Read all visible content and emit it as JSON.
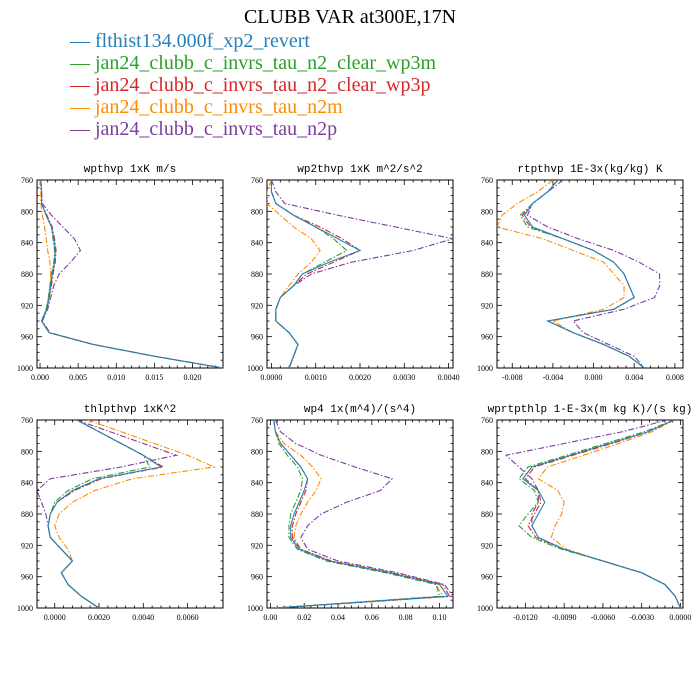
{
  "title": "CLUBB VAR at300E,17N",
  "legend": {
    "position": "top-left",
    "entries": [
      {
        "label": "flthist134.000f_xp2_revert",
        "color": "#2a7fb8",
        "dash": "solid"
      },
      {
        "label": "jan24_clubb_c_invrs_tau_n2_clear_wp3m",
        "color": "#2ca02c",
        "dash": "dashdot"
      },
      {
        "label": "jan24_clubb_c_invrs_tau_n2_clear_wp3p",
        "color": "#d62728",
        "dash": "dashdot"
      },
      {
        "label": "jan24_clubb_c_invrs_tau_n2m",
        "color": "#ff8c00",
        "dash": "dashdot"
      },
      {
        "label": "jan24_clubb_c_invrs_tau_n2p",
        "color": "#7b3f9e",
        "dash": "dashdot"
      }
    ]
  },
  "chart_data": [
    {
      "type": "line",
      "title": "wpthvp  1xK m/s",
      "xlim": [
        -0.0004,
        0.024
      ],
      "ylim": [
        760,
        1000
      ],
      "y_inverted": true,
      "xticks": [
        "0.000",
        "0.005",
        "0.010",
        "0.015",
        "0.020"
      ],
      "xtick_values": [
        0,
        0.005,
        0.01,
        0.015,
        0.02
      ],
      "yticks": [
        "760",
        "800",
        "840",
        "880",
        "920",
        "960",
        "1000"
      ],
      "y": [
        760,
        775,
        790,
        805,
        820,
        835,
        850,
        865,
        880,
        895,
        910,
        925,
        940,
        955,
        970,
        985,
        1000
      ],
      "series": [
        {
          "name": "flthist134.000f_xp2_revert",
          "values": [
            0.0001,
            0.0002,
            0.0002,
            0.0008,
            0.0015,
            0.0018,
            0.002,
            0.0019,
            0.0016,
            0.0014,
            0.0012,
            0.0009,
            0.0002,
            0.0012,
            0.007,
            0.015,
            0.024
          ]
        },
        {
          "name": "jan24_clubb_c_invrs_tau_n2_clear_wp3m",
          "values": [
            0.0001,
            0.0002,
            0.0002,
            0.0008,
            0.0015,
            0.0017,
            0.0019,
            0.0018,
            0.0015,
            0.0013,
            0.0011,
            0.0008,
            0.0002,
            0.0012,
            0.007,
            0.015,
            0.024
          ]
        },
        {
          "name": "jan24_clubb_c_invrs_tau_n2_clear_wp3p",
          "values": [
            0.0001,
            0.0002,
            0.0002,
            0.0009,
            0.0016,
            0.0019,
            0.0021,
            0.002,
            0.0017,
            0.0015,
            0.0012,
            0.0009,
            0.0002,
            0.0012,
            0.007,
            0.015,
            0.024
          ]
        },
        {
          "name": "jan24_clubb_c_invrs_tau_n2m",
          "values": [
            0.0,
            0.0001,
            0.0001,
            0.0003,
            0.0006,
            0.0008,
            0.001,
            0.0013,
            0.0014,
            0.0013,
            0.0011,
            0.0008,
            0.0002,
            0.0012,
            0.007,
            0.015,
            0.024
          ]
        },
        {
          "name": "jan24_clubb_c_invrs_tau_n2p",
          "values": [
            0.0001,
            0.0002,
            0.0003,
            0.0015,
            0.003,
            0.0045,
            0.0053,
            0.004,
            0.0025,
            0.0018,
            0.0014,
            0.001,
            0.0003,
            0.0013,
            0.007,
            0.015,
            0.024
          ]
        }
      ]
    },
    {
      "type": "line",
      "title": "wp2thvp  1xK m^2/s^2",
      "xlim": [
        -0.0001,
        0.0041
      ],
      "ylim": [
        760,
        1000
      ],
      "y_inverted": true,
      "xticks": [
        "0.0000",
        "0.0010",
        "0.0020",
        "0.0030",
        "0.0040"
      ],
      "xtick_values": [
        0,
        0.001,
        0.002,
        0.003,
        0.004
      ],
      "yticks": [
        "760",
        "800",
        "840",
        "880",
        "920",
        "960",
        "1000"
      ],
      "y": [
        760,
        775,
        790,
        805,
        820,
        835,
        850,
        865,
        880,
        895,
        910,
        925,
        940,
        955,
        970,
        985,
        1000
      ],
      "series": [
        {
          "name": "flthist134.000f_xp2_revert",
          "values": [
            0.0,
            0.0,
            0.0001,
            0.0005,
            0.001,
            0.0015,
            0.002,
            0.0013,
            0.0007,
            0.0005,
            0.0002,
            0.0001,
            0.0001,
            0.0004,
            0.0006,
            0.0005,
            0.0004
          ]
        },
        {
          "name": "jan24_clubb_c_invrs_tau_n2_clear_wp3m",
          "values": [
            0.0,
            0.0,
            0.0001,
            0.0005,
            0.001,
            0.0014,
            0.0017,
            0.0012,
            0.0007,
            0.0005,
            0.0002,
            0.0001,
            0.0001,
            0.0004,
            0.0006,
            0.0005,
            0.0004
          ]
        },
        {
          "name": "jan24_clubb_c_invrs_tau_n2_clear_wp3p",
          "values": [
            0.0,
            0.0,
            0.0001,
            0.0005,
            0.0011,
            0.0016,
            0.002,
            0.0014,
            0.0008,
            0.0005,
            0.0002,
            0.0001,
            0.0001,
            0.0004,
            0.0006,
            0.0005,
            0.0004
          ]
        },
        {
          "name": "jan24_clubb_c_invrs_tau_n2m",
          "values": [
            0.0,
            -0.0001,
            -0.0001,
            0.0002,
            0.0005,
            0.0009,
            0.0011,
            0.0009,
            0.0006,
            0.0004,
            0.0002,
            0.0001,
            0.0001,
            0.0004,
            0.0006,
            0.0005,
            0.0004
          ]
        },
        {
          "name": "jan24_clubb_c_invrs_tau_n2p",
          "values": [
            0.0,
            0.0001,
            0.0003,
            0.0015,
            0.0028,
            0.0041,
            0.0032,
            0.0018,
            0.0009,
            0.0005,
            0.0002,
            0.0001,
            0.0001,
            0.0004,
            0.0006,
            0.0005,
            0.0004
          ]
        }
      ]
    },
    {
      "type": "line",
      "title": "rtpthvp  1E-3x(kg/kg) K",
      "xlim": [
        -0.0095,
        0.0088
      ],
      "ylim": [
        760,
        1000
      ],
      "y_inverted": true,
      "xticks": [
        "-0.008",
        "-0.004",
        "0.000",
        "0.004",
        "0.008"
      ],
      "xtick_values": [
        -0.008,
        -0.004,
        0,
        0.004,
        0.008
      ],
      "yticks": [
        "760",
        "800",
        "840",
        "880",
        "920",
        "960",
        "1000"
      ],
      "y": [
        760,
        775,
        790,
        805,
        820,
        835,
        850,
        865,
        880,
        895,
        910,
        925,
        940,
        955,
        970,
        985,
        1000
      ],
      "series": [
        {
          "name": "flthist134.000f_xp2_revert",
          "values": [
            -0.0035,
            -0.0045,
            -0.006,
            -0.0068,
            -0.006,
            -0.003,
            0.0,
            0.002,
            0.003,
            0.0035,
            0.004,
            0.002,
            -0.0045,
            -0.002,
            0.001,
            0.0035,
            0.005
          ]
        },
        {
          "name": "jan24_clubb_c_invrs_tau_n2_clear_wp3m",
          "values": [
            -0.0035,
            -0.0045,
            -0.006,
            -0.0072,
            -0.0065,
            -0.003,
            0.0,
            0.002,
            0.003,
            0.0035,
            0.004,
            0.002,
            -0.0045,
            -0.002,
            0.001,
            0.0035,
            0.005
          ]
        },
        {
          "name": "jan24_clubb_c_invrs_tau_n2_clear_wp3p",
          "values": [
            -0.0035,
            -0.0045,
            -0.006,
            -0.007,
            -0.0062,
            -0.003,
            0.0,
            0.002,
            0.003,
            0.0035,
            0.004,
            0.002,
            -0.0045,
            -0.002,
            0.001,
            0.0035,
            0.005
          ]
        },
        {
          "name": "jan24_clubb_c_invrs_tau_n2m",
          "values": [
            -0.004,
            -0.0055,
            -0.0075,
            -0.009,
            -0.0095,
            -0.005,
            -0.002,
            0.001,
            0.002,
            0.003,
            0.003,
            0.001,
            -0.004,
            -0.002,
            0.001,
            0.0035,
            0.005
          ]
        },
        {
          "name": "jan24_clubb_c_invrs_tau_n2p",
          "values": [
            -0.003,
            -0.0045,
            -0.006,
            -0.0065,
            -0.0045,
            -0.0015,
            0.002,
            0.0045,
            0.0065,
            0.0065,
            0.006,
            0.003,
            -0.002,
            -0.001,
            0.0015,
            0.004,
            0.005
          ]
        }
      ]
    },
    {
      "type": "line",
      "title": "thlpthvp  1xK^2",
      "xlim": [
        -0.0008,
        0.0076
      ],
      "ylim": [
        760,
        1000
      ],
      "y_inverted": true,
      "xticks": [
        "0.0000",
        "0.0020",
        "0.0040",
        "0.0060"
      ],
      "xtick_values": [
        0,
        0.002,
        0.004,
        0.006
      ],
      "yticks": [
        "760",
        "800",
        "840",
        "880",
        "920",
        "960",
        "1000"
      ],
      "y": [
        760,
        775,
        790,
        805,
        820,
        835,
        850,
        865,
        880,
        895,
        910,
        925,
        940,
        955,
        970,
        985,
        1000
      ],
      "series": [
        {
          "name": "flthist134.000f_xp2_revert",
          "values": [
            0.001,
            0.002,
            0.003,
            0.004,
            0.0048,
            0.002,
            0.0008,
            0.0001,
            -0.0002,
            -0.0003,
            -0.0002,
            0.0003,
            0.0008,
            0.0003,
            0.0006,
            0.0012,
            0.002
          ]
        },
        {
          "name": "jan24_clubb_c_invrs_tau_n2_clear_wp3m",
          "values": [
            0.001,
            0.002,
            0.003,
            0.004,
            0.0043,
            0.0017,
            0.0006,
            0.0,
            -0.0002,
            -0.0003,
            -0.0002,
            0.0003,
            0.0008,
            0.0003,
            0.0006,
            0.0012,
            0.002
          ]
        },
        {
          "name": "jan24_clubb_c_invrs_tau_n2_clear_wp3p",
          "values": [
            0.001,
            0.002,
            0.003,
            0.004,
            0.0049,
            0.0021,
            0.0009,
            0.0001,
            -0.0002,
            -0.0003,
            -0.0002,
            0.0003,
            0.0008,
            0.0003,
            0.0006,
            0.0012,
            0.002
          ]
        },
        {
          "name": "jan24_clubb_c_invrs_tau_n2m",
          "values": [
            0.0015,
            0.003,
            0.0045,
            0.006,
            0.0072,
            0.0035,
            0.0018,
            0.0008,
            0.0002,
            0.0,
            0.0002,
            0.0006,
            0.0008,
            0.0003,
            0.0006,
            0.0012,
            0.002
          ]
        },
        {
          "name": "jan24_clubb_c_invrs_tau_n2p",
          "values": [
            0.001,
            0.0025,
            0.004,
            0.0055,
            0.003,
            -0.0002,
            -0.0008,
            -0.0006,
            -0.0004,
            -0.0003,
            -0.0002,
            0.0003,
            0.0008,
            0.0003,
            0.0006,
            0.0012,
            0.002
          ]
        }
      ]
    },
    {
      "type": "line",
      "title": "wp4  1x(m^4)/(s^4)",
      "xlim": [
        -0.002,
        0.108
      ],
      "ylim": [
        760,
        1000
      ],
      "y_inverted": true,
      "xticks": [
        "0.00",
        "0.02",
        "0.04",
        "0.06",
        "0.08",
        "0.10"
      ],
      "xtick_values": [
        0,
        0.02,
        0.04,
        0.06,
        0.08,
        0.1
      ],
      "yticks": [
        "760",
        "800",
        "840",
        "880",
        "920",
        "960",
        "1000"
      ],
      "y": [
        760,
        775,
        790,
        805,
        820,
        835,
        850,
        865,
        880,
        895,
        910,
        925,
        940,
        955,
        970,
        985,
        1000
      ],
      "series": [
        {
          "name": "flthist134.000f_xp2_revert",
          "values": [
            0.002,
            0.003,
            0.006,
            0.012,
            0.018,
            0.022,
            0.02,
            0.017,
            0.014,
            0.012,
            0.012,
            0.017,
            0.035,
            0.07,
            0.1,
            0.105,
            0.003
          ]
        },
        {
          "name": "jan24_clubb_c_invrs_tau_n2_clear_wp3m",
          "values": [
            0.002,
            0.003,
            0.005,
            0.01,
            0.016,
            0.019,
            0.018,
            0.015,
            0.012,
            0.011,
            0.011,
            0.016,
            0.033,
            0.068,
            0.098,
            0.1,
            0.003
          ]
        },
        {
          "name": "jan24_clubb_c_invrs_tau_n2_clear_wp3p",
          "values": [
            0.002,
            0.003,
            0.006,
            0.012,
            0.018,
            0.022,
            0.021,
            0.018,
            0.015,
            0.013,
            0.013,
            0.018,
            0.036,
            0.072,
            0.102,
            0.106,
            0.003
          ]
        },
        {
          "name": "jan24_clubb_c_invrs_tau_n2m",
          "values": [
            0.002,
            0.003,
            0.008,
            0.018,
            0.025,
            0.03,
            0.027,
            0.022,
            0.018,
            0.015,
            0.014,
            0.018,
            0.036,
            0.07,
            0.098,
            0.102,
            0.003
          ]
        },
        {
          "name": "jan24_clubb_c_invrs_tau_n2p",
          "values": [
            0.003,
            0.006,
            0.015,
            0.03,
            0.05,
            0.072,
            0.065,
            0.045,
            0.03,
            0.022,
            0.018,
            0.022,
            0.04,
            0.075,
            0.103,
            0.108,
            0.003
          ]
        }
      ]
    },
    {
      "type": "line",
      "title": "wprtpthlp  1-E-3x(m kg K)/(s kg)",
      "xlim": [
        -0.0142,
        0.0002
      ],
      "ylim": [
        760,
        1000
      ],
      "y_inverted": true,
      "xticks": [
        "-0.0120",
        "-0.0090",
        "-0.0060",
        "-0.0030",
        "0.0000"
      ],
      "xtick_values": [
        -0.012,
        -0.009,
        -0.006,
        -0.003,
        0
      ],
      "yticks": [
        "760",
        "800",
        "840",
        "880",
        "920",
        "960",
        "1000"
      ],
      "y": [
        760,
        775,
        790,
        805,
        820,
        835,
        850,
        865,
        880,
        895,
        910,
        925,
        940,
        955,
        970,
        985,
        1000
      ],
      "series": [
        {
          "name": "flthist134.000f_xp2_revert",
          "values": [
            -0.0005,
            -0.0025,
            -0.0055,
            -0.0085,
            -0.0115,
            -0.0122,
            -0.011,
            -0.0105,
            -0.011,
            -0.0115,
            -0.011,
            -0.009,
            -0.006,
            -0.003,
            -0.0012,
            -0.0004,
            0.0
          ]
        },
        {
          "name": "jan24_clubb_c_invrs_tau_n2_clear_wp3m",
          "values": [
            -0.0005,
            -0.0028,
            -0.0058,
            -0.0088,
            -0.0118,
            -0.0125,
            -0.0113,
            -0.011,
            -0.0118,
            -0.0125,
            -0.0115,
            -0.0092,
            -0.006,
            -0.003,
            -0.0012,
            -0.0004,
            0.0
          ]
        },
        {
          "name": "jan24_clubb_c_invrs_tau_n2_clear_wp3p",
          "values": [
            -0.0005,
            -0.0025,
            -0.0053,
            -0.0083,
            -0.0113,
            -0.012,
            -0.011,
            -0.0108,
            -0.0113,
            -0.0118,
            -0.0112,
            -0.009,
            -0.006,
            -0.003,
            -0.0012,
            -0.0004,
            0.0
          ]
        },
        {
          "name": "jan24_clubb_c_invrs_tau_n2m",
          "values": [
            -0.0005,
            -0.0022,
            -0.0048,
            -0.0075,
            -0.0103,
            -0.011,
            -0.0095,
            -0.009,
            -0.0092,
            -0.0097,
            -0.01,
            -0.0088,
            -0.006,
            -0.003,
            -0.0012,
            -0.0004,
            0.0
          ]
        },
        {
          "name": "jan24_clubb_c_invrs_tau_n2p",
          "values": [
            -0.001,
            -0.0045,
            -0.009,
            -0.0135,
            -0.0125,
            -0.0115,
            -0.011,
            -0.011,
            -0.0115,
            -0.0115,
            -0.011,
            -0.009,
            -0.006,
            -0.003,
            -0.0012,
            -0.0004,
            0.0
          ]
        }
      ]
    }
  ]
}
